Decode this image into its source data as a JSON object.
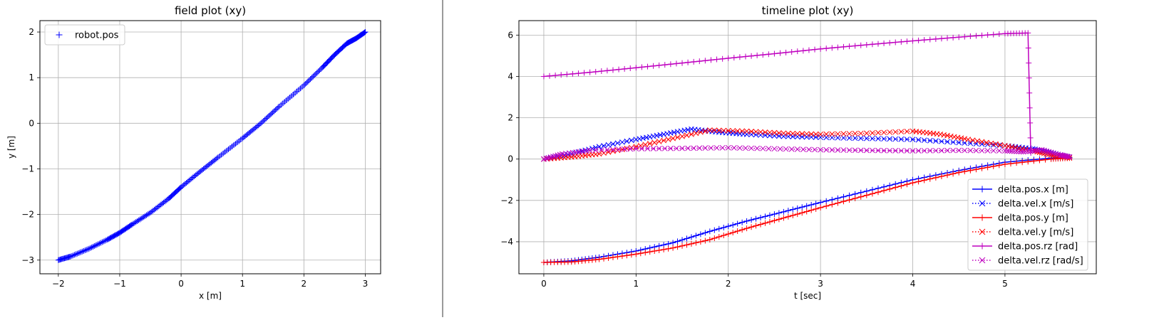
{
  "chart_data": [
    {
      "type": "scatter",
      "title": "field plot (xy)",
      "xlabel": "x [m]",
      "ylabel": "y [m]",
      "xlim": [
        -2.3,
        3.25
      ],
      "ylim": [
        -3.3,
        2.25
      ],
      "xticks": [
        -2,
        -1,
        0,
        1,
        2,
        3
      ],
      "yticks": [
        -3,
        -2,
        -1,
        0,
        1,
        2
      ],
      "grid": true,
      "legend": "top-left",
      "series": [
        {
          "name": "robot.pos",
          "marker": "+",
          "color": "#0000ff",
          "x": [
            -2.0,
            -1.8,
            -1.5,
            -1.2,
            -1.0,
            -0.8,
            -0.5,
            -0.2,
            0.0,
            0.3,
            0.6,
            1.0,
            1.3,
            1.6,
            2.0,
            2.3,
            2.5,
            2.7,
            2.85,
            3.0
          ],
          "y": [
            -3.0,
            -2.92,
            -2.75,
            -2.55,
            -2.4,
            -2.22,
            -1.96,
            -1.65,
            -1.4,
            -1.07,
            -0.75,
            -0.33,
            0.0,
            0.37,
            0.83,
            1.22,
            1.5,
            1.75,
            1.86,
            2.0
          ]
        }
      ]
    },
    {
      "type": "line",
      "title": "timeline plot (xy)",
      "xlabel": "t [sec]",
      "ylabel": "",
      "xlim": [
        -0.27,
        5.99
      ],
      "ylim": [
        -5.55,
        6.7
      ],
      "xticks": [
        0,
        1,
        2,
        3,
        4,
        5
      ],
      "yticks": [
        -4,
        -2,
        0,
        2,
        4,
        6
      ],
      "grid": true,
      "legend": "bottom-right",
      "series": [
        {
          "name": "delta.pos.x [m]",
          "color": "#0000ff",
          "linestyle": "solid",
          "marker": "+",
          "x": [
            0.0,
            0.3,
            0.6,
            1.0,
            1.4,
            1.8,
            2.2,
            2.6,
            3.0,
            3.5,
            4.0,
            4.5,
            5.0,
            5.5,
            5.7
          ],
          "y": [
            -5.0,
            -4.92,
            -4.75,
            -4.45,
            -4.05,
            -3.5,
            -3.0,
            -2.55,
            -2.1,
            -1.55,
            -1.0,
            -0.55,
            -0.15,
            0.05,
            0.08
          ]
        },
        {
          "name": "delta.vel.x [m/s]",
          "color": "#0000ff",
          "linestyle": "dotted",
          "marker": "x",
          "x": [
            0.0,
            0.3,
            0.6,
            1.0,
            1.3,
            1.6,
            1.9,
            2.2,
            2.6,
            3.0,
            3.5,
            4.0,
            4.5,
            5.0,
            5.3,
            5.5,
            5.7
          ],
          "y": [
            0.0,
            0.25,
            0.6,
            0.95,
            1.2,
            1.45,
            1.3,
            1.2,
            1.1,
            1.05,
            1.0,
            0.95,
            0.8,
            0.65,
            0.5,
            0.3,
            0.1
          ]
        },
        {
          "name": "delta.pos.y [m]",
          "color": "#ff0000",
          "linestyle": "solid",
          "marker": "+",
          "x": [
            0.0,
            0.3,
            0.6,
            1.0,
            1.4,
            1.8,
            2.2,
            2.6,
            3.0,
            3.5,
            4.0,
            4.5,
            5.0,
            5.5,
            5.7
          ],
          "y": [
            -5.0,
            -4.98,
            -4.85,
            -4.6,
            -4.3,
            -3.9,
            -3.35,
            -2.85,
            -2.35,
            -1.75,
            -1.15,
            -0.65,
            -0.25,
            0.0,
            0.05
          ]
        },
        {
          "name": "delta.vel.y [m/s]",
          "color": "#ff0000",
          "linestyle": "dotted",
          "marker": "x",
          "x": [
            0.0,
            0.3,
            0.6,
            1.0,
            1.4,
            1.8,
            2.2,
            2.6,
            3.0,
            3.5,
            4.0,
            4.3,
            4.6,
            5.0,
            5.3,
            5.5,
            5.7
          ],
          "y": [
            0.0,
            0.1,
            0.25,
            0.6,
            1.0,
            1.4,
            1.35,
            1.25,
            1.2,
            1.25,
            1.35,
            1.2,
            0.95,
            0.65,
            0.4,
            0.2,
            0.05
          ]
        },
        {
          "name": "delta.pos.rz [rad]",
          "color": "#bf00bf",
          "linestyle": "solid",
          "marker": "+",
          "x": [
            0.0,
            0.5,
            1.0,
            1.5,
            2.0,
            2.5,
            3.0,
            3.5,
            4.0,
            4.5,
            5.0,
            5.25,
            5.28
          ],
          "y": [
            4.0,
            4.2,
            4.42,
            4.65,
            4.88,
            5.1,
            5.33,
            5.53,
            5.72,
            5.9,
            6.07,
            6.1,
            0.3
          ]
        },
        {
          "name": "delta.vel.rz [rad/s]",
          "color": "#bf00bf",
          "linestyle": "dotted",
          "marker": "x",
          "x": [
            0.0,
            0.2,
            0.5,
            1.0,
            1.5,
            2.0,
            2.5,
            3.0,
            3.5,
            4.0,
            4.5,
            5.0,
            5.2,
            5.4,
            5.6,
            5.7
          ],
          "y": [
            0.0,
            0.25,
            0.42,
            0.5,
            0.52,
            0.55,
            0.5,
            0.45,
            0.42,
            0.4,
            0.42,
            0.4,
            0.35,
            0.45,
            0.2,
            0.1
          ]
        }
      ]
    }
  ]
}
